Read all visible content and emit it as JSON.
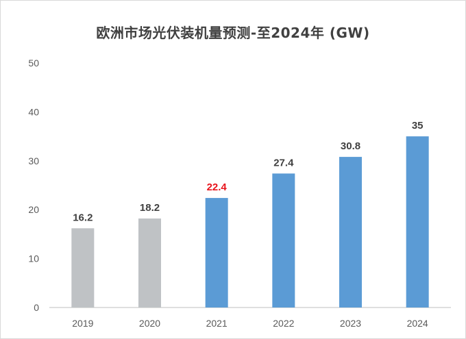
{
  "chart_data": {
    "type": "bar",
    "title": "欧洲市场光伏装机量预测-至2024年 (GW)",
    "categories": [
      "2019",
      "2020",
      "2021",
      "2022",
      "2023",
      "2024"
    ],
    "values": [
      16.2,
      18.2,
      22.4,
      27.4,
      30.8,
      35
    ],
    "data_labels": [
      "16.2",
      "18.2",
      "22.4",
      "27.4",
      "30.8",
      "35"
    ],
    "bar_colors": [
      "#bfc2c5",
      "#bfc2c5",
      "#5b9bd5",
      "#5b9bd5",
      "#5b9bd5",
      "#5b9bd5"
    ],
    "label_colors": [
      "#404040",
      "#404040",
      "#e8141c",
      "#404040",
      "#404040",
      "#404040"
    ],
    "ylim": [
      0,
      50
    ],
    "yticks": [
      "0",
      "10",
      "20",
      "30",
      "40",
      "50"
    ],
    "xlabel": "",
    "ylabel": "",
    "grid": false,
    "legend": "none"
  }
}
